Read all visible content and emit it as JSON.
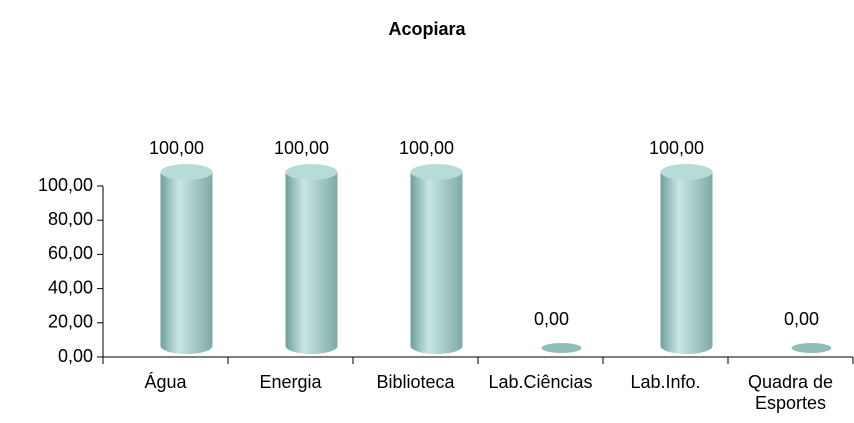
{
  "chart_data": {
    "type": "bar",
    "title": "Acopiara",
    "categories": [
      "Água",
      "Energia",
      "Biblioteca",
      "Lab.Ciências",
      "Lab.Info.",
      "Quadra de Esportes"
    ],
    "values": [
      100,
      100,
      100,
      0,
      100,
      0
    ],
    "value_labels": [
      "100,00",
      "100,00",
      "100,00",
      "0,00",
      "100,00",
      "0,00"
    ],
    "color": "#9cc8c4",
    "ylim": [
      0,
      100
    ],
    "yticks": [
      {
        "value": 0,
        "label": "0,00"
      },
      {
        "value": 20,
        "label": "20,00"
      },
      {
        "value": 40,
        "label": "40,00"
      },
      {
        "value": 60,
        "label": "60,00"
      },
      {
        "value": 80,
        "label": "80,00"
      },
      {
        "value": 100,
        "label": "100,00"
      }
    ]
  }
}
